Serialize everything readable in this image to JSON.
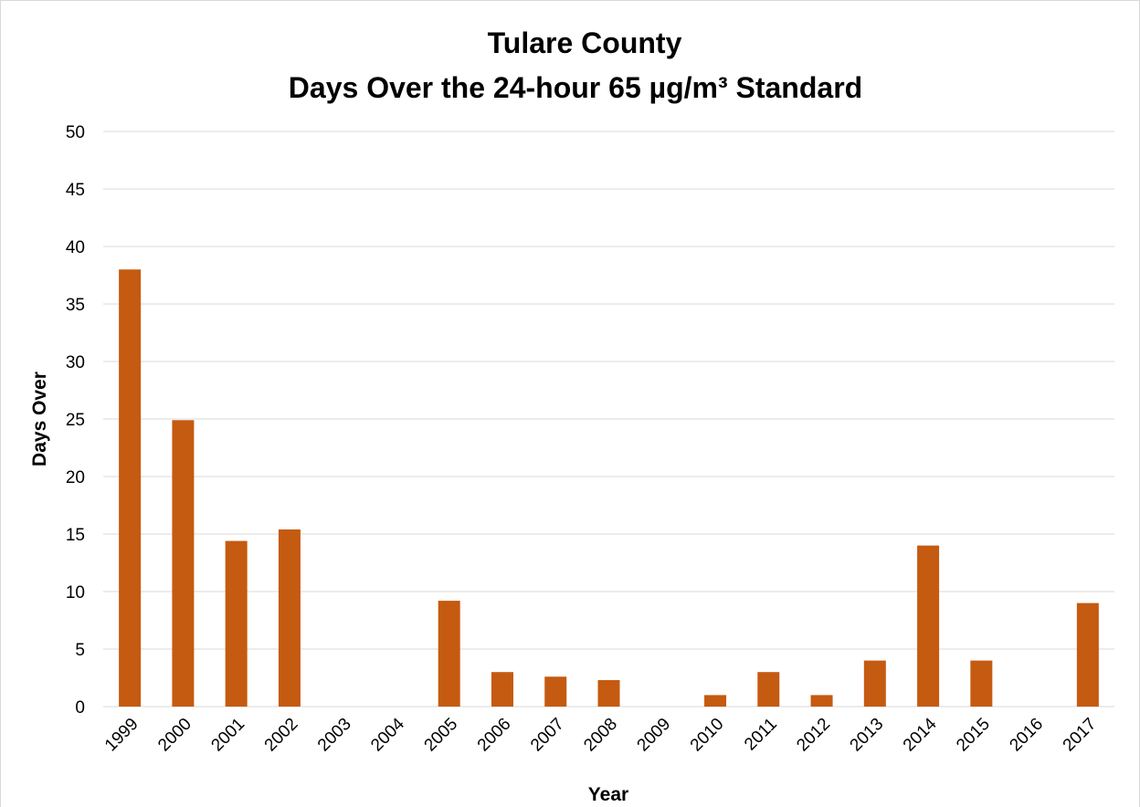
{
  "chart_data": {
    "type": "bar",
    "title": [
      "Tulare County",
      "Days Over the 24-hour 65 µg/m³ Standard"
    ],
    "x_label": "Year",
    "y_label": "Days Over",
    "categories": [
      "1999",
      "2000",
      "2001",
      "2002",
      "2003",
      "2004",
      "2005",
      "2006",
      "2007",
      "2008",
      "2009",
      "2010",
      "2011",
      "2012",
      "2013",
      "2014",
      "2015",
      "2016",
      "2017"
    ],
    "values": [
      38,
      24.9,
      14.4,
      15.4,
      0,
      0,
      9.2,
      3,
      2.6,
      2.3,
      0,
      1,
      3,
      1,
      4,
      14,
      4,
      0,
      9
    ],
    "color": "#c55a11",
    "ylim": [
      0,
      50
    ],
    "yticks": [
      0,
      5,
      10,
      15,
      20,
      25,
      30,
      35,
      40,
      45,
      50
    ],
    "grid": true
  }
}
